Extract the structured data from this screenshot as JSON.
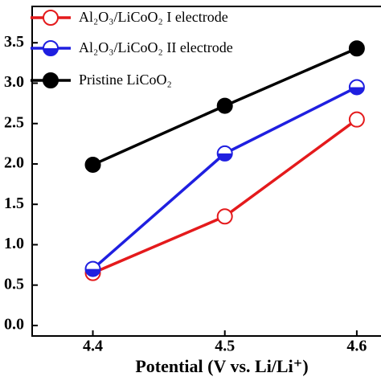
{
  "chart_data": {
    "type": "line",
    "x_label": "Potential (V vs. Li/Li⁺)",
    "x": [
      4.4,
      4.5,
      4.6
    ],
    "series": [
      {
        "name": "Al₂O₃/LiCoO₂ I electrode",
        "color": "#e41a1c",
        "marker": "open",
        "values": [
          0.65,
          1.35,
          2.55
        ]
      },
      {
        "name": "Al₂O₃/LiCoO₂ II electrode",
        "color": "#1f1fe0",
        "marker": "half",
        "values": [
          0.7,
          2.13,
          2.95
        ]
      },
      {
        "name": "Pristine LiCoO₂",
        "color": "#000000",
        "marker": "filled",
        "values": [
          1.99,
          2.72,
          3.43
        ]
      }
    ],
    "xlim": [
      4.354,
      4.622
    ],
    "xticks": [
      4.4,
      4.5,
      4.6
    ],
    "ylim": [
      -0.13,
      3.95
    ],
    "yticks": [
      {
        "value": 0,
        "label": "0.0"
      },
      {
        "value": 0.5,
        "label": "0.5"
      },
      {
        "value": 1.0,
        "label": "1.0"
      },
      {
        "value": 1.5,
        "label": "1.5"
      },
      {
        "value": 2.0,
        "label": "2.0"
      },
      {
        "value": 2.5,
        "label": "2.5"
      },
      {
        "value": 3.0,
        "label": "3.0"
      },
      {
        "value": 3.5,
        "label": "3.5"
      }
    ],
    "legend": "upper left"
  }
}
